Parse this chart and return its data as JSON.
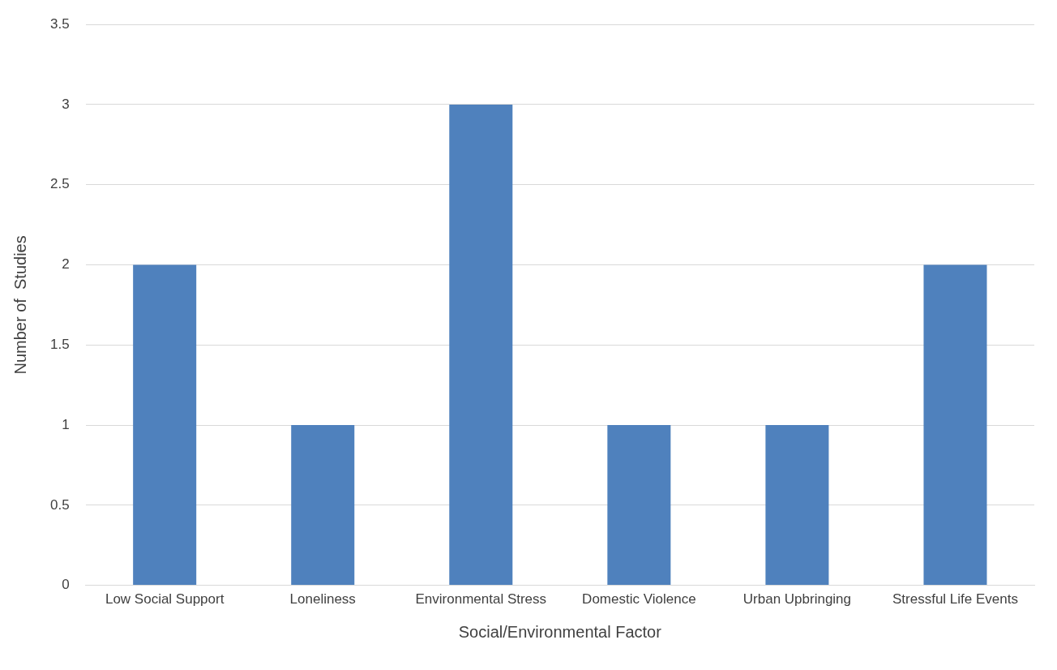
{
  "chart_data": {
    "type": "bar",
    "xlabel": "Social/Environmental Factor",
    "ylabel": "Number of  Studies",
    "categories": [
      "Low Social Support",
      "Loneliness",
      "Environmental Stress",
      "Domestic Violence",
      "Urban Upbringing",
      "Stressful Life Events"
    ],
    "values": [
      2,
      1,
      3,
      1,
      1,
      2
    ],
    "color": "#4f81bd",
    "ylim": [
      0,
      3.5
    ],
    "yticks": [
      0,
      0.5,
      1,
      1.5,
      2,
      2.5,
      3,
      3.5
    ],
    "grid": "y",
    "legend": false
  }
}
